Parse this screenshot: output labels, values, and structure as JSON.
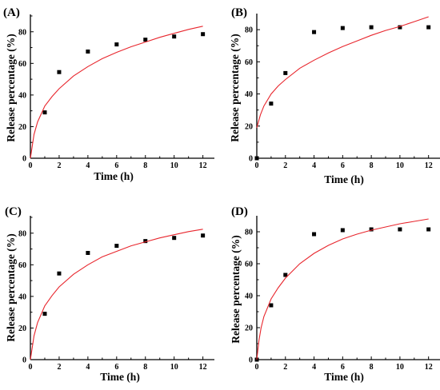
{
  "chart_data": [
    {
      "type": "scatter",
      "panel_label": "(A)",
      "xlabel": "Time (h)",
      "ylabel": "Release percentage (%)",
      "xlim": [
        0,
        12.8
      ],
      "ylim": [
        0,
        91
      ],
      "xticks": [
        0,
        2,
        4,
        6,
        8,
        10,
        12
      ],
      "yticks": [
        0,
        20,
        40,
        60,
        80
      ],
      "series": [
        {
          "kind": "points",
          "color": "#000000",
          "x": [
            1,
            2,
            4,
            6,
            8,
            10,
            12
          ],
          "y": [
            29,
            54.5,
            67.5,
            72,
            75,
            77,
            78.5
          ]
        },
        {
          "kind": "fit",
          "color": "#e8262d",
          "x": [
            0,
            0.25,
            0.5,
            1,
            1.5,
            2,
            3,
            4,
            5,
            6,
            7,
            8,
            9,
            10,
            11,
            12
          ],
          "y": [
            0,
            15,
            23,
            33,
            39,
            44,
            52,
            58,
            63,
            67,
            70.5,
            73.5,
            76.5,
            79,
            81.5,
            83.5
          ]
        }
      ]
    },
    {
      "type": "scatter",
      "panel_label": "(B)",
      "xlabel": "Time (h)",
      "ylabel": "Release percentage (%)",
      "xlim": [
        0,
        12.8
      ],
      "ylim": [
        0,
        90
      ],
      "xticks": [
        0,
        2,
        4,
        6,
        8,
        10,
        12
      ],
      "yticks": [
        0,
        20,
        40,
        60,
        80
      ],
      "series": [
        {
          "kind": "points",
          "color": "#000000",
          "x": [
            0,
            1,
            2,
            4,
            6,
            8,
            10,
            12
          ],
          "y": [
            0,
            34,
            53,
            78.5,
            81,
            81.5,
            81.5,
            81.5
          ]
        },
        {
          "kind": "fit",
          "color": "#e8262d",
          "x": [
            0,
            0.25,
            0.5,
            1,
            1.5,
            2,
            3,
            4,
            5,
            6,
            7,
            8,
            9,
            10,
            11,
            12
          ],
          "y": [
            19,
            27,
            32.5,
            40,
            45,
            49,
            56,
            61,
            65.5,
            69.5,
            73,
            76.5,
            79.5,
            82,
            85,
            88
          ]
        }
      ]
    },
    {
      "type": "scatter",
      "panel_label": "(C)",
      "xlabel": "Time (h)",
      "ylabel": "Release percentage (%)",
      "xlim": [
        0,
        12.8
      ],
      "ylim": [
        0,
        91
      ],
      "xticks": [
        0,
        2,
        4,
        6,
        8,
        10,
        12
      ],
      "yticks": [
        0,
        20,
        40,
        60,
        80
      ],
      "series": [
        {
          "kind": "points",
          "color": "#000000",
          "x": [
            1,
            2,
            4,
            6,
            8,
            10,
            12
          ],
          "y": [
            29,
            54.5,
            67.5,
            72,
            75,
            77,
            78.5
          ]
        },
        {
          "kind": "fit",
          "color": "#e8262d",
          "x": [
            0,
            0.25,
            0.5,
            1,
            1.5,
            2,
            3,
            4,
            5,
            6,
            7,
            8,
            9,
            10,
            11,
            12
          ],
          "y": [
            0,
            15,
            23.5,
            34,
            40.5,
            46,
            54,
            60,
            65,
            68.5,
            72,
            74.5,
            77,
            79,
            81,
            82.5
          ]
        }
      ]
    },
    {
      "type": "scatter",
      "panel_label": "(D)",
      "xlabel": "Time (h)",
      "ylabel": "Release percentage (%)",
      "xlim": [
        0,
        12.8
      ],
      "ylim": [
        0,
        90
      ],
      "xticks": [
        0,
        2,
        4,
        6,
        8,
        10,
        12
      ],
      "yticks": [
        0,
        20,
        40,
        60,
        80
      ],
      "series": [
        {
          "kind": "points",
          "color": "#000000",
          "x": [
            0,
            1,
            2,
            4,
            6,
            8,
            10,
            12
          ],
          "y": [
            0,
            34,
            53,
            78.5,
            81,
            81.5,
            81.5,
            81.5
          ]
        },
        {
          "kind": "fit",
          "color": "#e8262d",
          "x": [
            0,
            0.15,
            0.3,
            0.5,
            1,
            1.5,
            2,
            3,
            4,
            5,
            6,
            7,
            8,
            9,
            10,
            11,
            12
          ],
          "y": [
            0,
            12,
            20,
            27,
            38,
            45,
            51,
            60,
            66.5,
            71.5,
            75.5,
            78.5,
            81,
            83,
            85,
            86.5,
            88
          ]
        }
      ]
    }
  ]
}
